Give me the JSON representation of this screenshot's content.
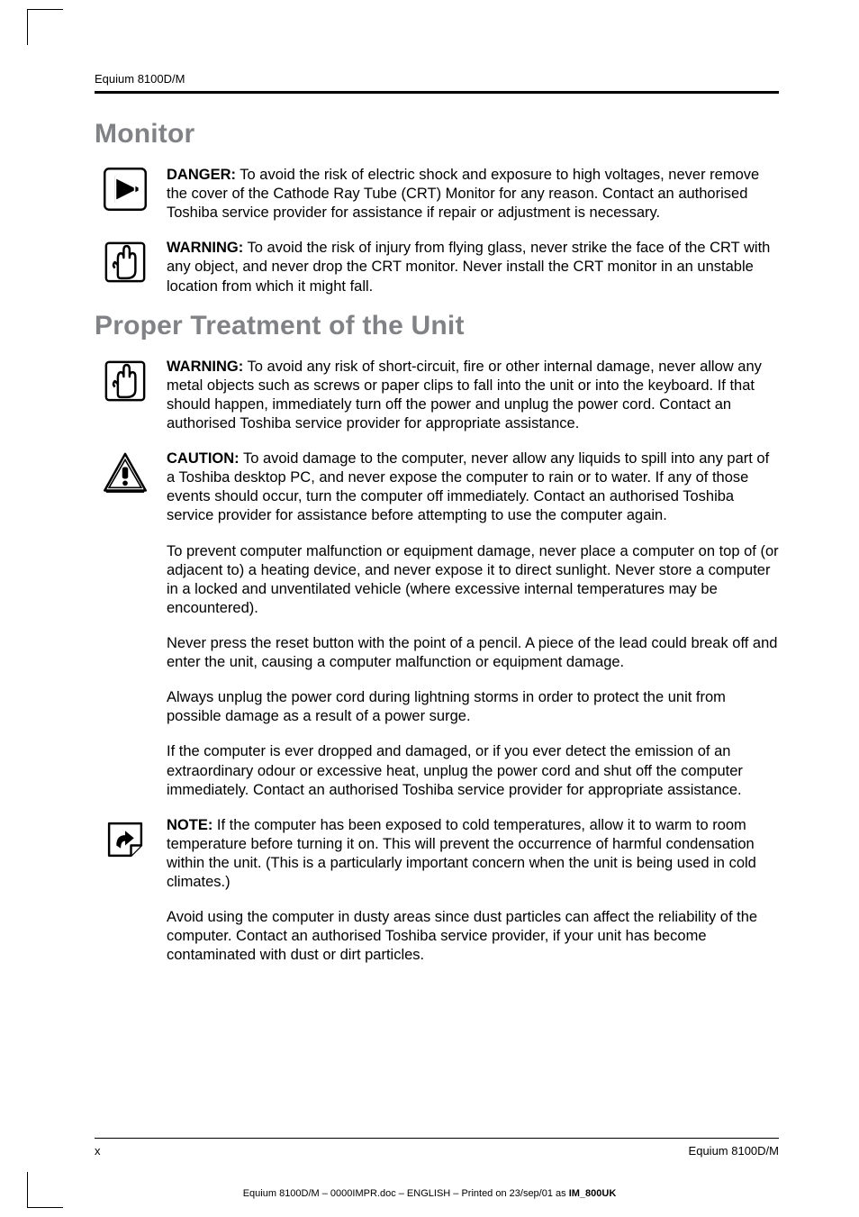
{
  "header": {
    "product": "Equium 8100D/M"
  },
  "sections": [
    {
      "title": "Monitor",
      "entries": [
        {
          "icon": "danger",
          "label": "DANGER:",
          "text": " To avoid the risk of electric shock and exposure to high voltages, never remove the cover of the Cathode Ray Tube (CRT) Monitor for any reason. Contact an authorised Toshiba service provider for assistance if repair or adjustment is necessary."
        },
        {
          "icon": "warning-hand",
          "label": "WARNING:",
          "text": " To avoid the risk of injury from flying glass, never strike the face of the CRT with any object, and never drop the CRT monitor. Never install the CRT monitor in an unstable location from which it might fall."
        }
      ]
    },
    {
      "title": "Proper Treatment of the Unit",
      "entries": [
        {
          "icon": "warning-hand",
          "label": "WARNING:",
          "text": " To avoid any risk of short-circuit, fire or other internal damage, never allow any metal objects such as screws or paper clips to fall into the unit or into the keyboard. If that should happen, immediately turn off the power and unplug the power cord. Contact an authorised Toshiba service provider for appropriate assistance."
        },
        {
          "icon": "caution",
          "label": "CAUTION:",
          "text": " To avoid damage to the computer, never allow any liquids to spill into any part of a Toshiba desktop PC, and never expose the computer to rain or to water. If any of those events should occur, turn the computer off immediately. Contact an authorised Toshiba service provider for assistance before attempting to use the computer again."
        },
        {
          "icon": "none",
          "label": "",
          "text": "To prevent computer malfunction or equipment damage, never place a computer on top of (or adjacent to) a heating device, and never expose it to direct sunlight. Never store a computer in a locked and unventilated vehicle (where excessive internal temperatures may be encountered)."
        },
        {
          "icon": "none",
          "label": "",
          "text": "Never press the reset button with the point of a pencil. A piece of the lead could break off and enter the unit, causing a computer malfunction or equipment damage."
        },
        {
          "icon": "none",
          "label": "",
          "text": "Always unplug the power cord during lightning storms in order to protect the unit from possible damage as a result of a power surge."
        },
        {
          "icon": "none",
          "label": "",
          "text": "If the computer is ever dropped and damaged, or if you ever detect the emission of an extraordinary odour or excessive heat, unplug the power cord and shut off the computer immediately. Contact an authorised Toshiba service provider for appropriate assistance."
        },
        {
          "icon": "note",
          "label": "NOTE:",
          "text": " If the computer has been exposed to cold temperatures, allow it to warm to room temperature before turning it on. This will prevent the occurrence of harmful condensation within the unit. (This is a particularly important concern when the unit is being used in cold climates.)"
        },
        {
          "icon": "none",
          "label": "",
          "text": "Avoid using the computer in dusty areas since dust particles can affect the reliability of the computer. Contact an authorised Toshiba service provider, if your unit has become contaminated with dust or dirt particles."
        }
      ]
    }
  ],
  "footer": {
    "page": "x",
    "product": "Equium 8100D/M"
  },
  "printline": {
    "prefix": "Equium 8100D/M  – 0000IMPR.doc – ENGLISH – Printed on 23/sep/01 as ",
    "bold": "IM_800UK"
  },
  "icons": {
    "danger": "danger-icon",
    "warning-hand": "warning-hand-icon",
    "caution": "caution-icon",
    "note": "note-icon"
  }
}
